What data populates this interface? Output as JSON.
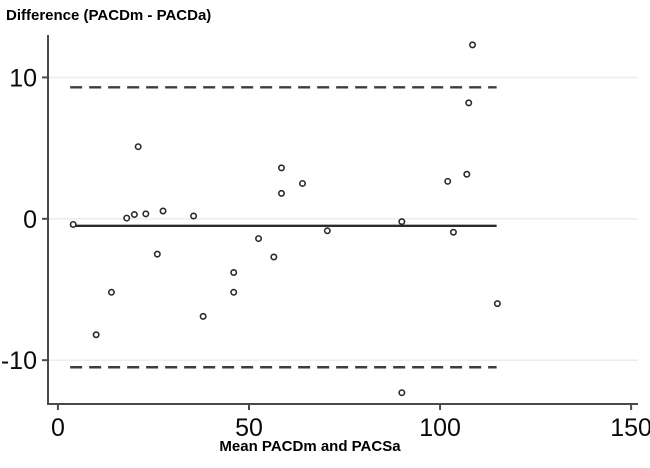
{
  "chart": {
    "title": "Difference (PACDm - PACDa)",
    "xlabel": "Mean PACDm and PACSa"
  },
  "chart_data": {
    "type": "scatter",
    "title": "Difference (PACDm - PACDa)",
    "xlabel": "Mean PACDm and PACSa",
    "ylabel": "Difference (PACDm - PACDa)",
    "x_ticks": [
      0,
      50,
      100,
      150
    ],
    "y_ticks": [
      10,
      0,
      -10
    ],
    "xlim": [
      -2.6,
      151.8
    ],
    "ylim": [
      -13.1,
      13.0
    ],
    "grid": "horizontal-light",
    "legend": "none",
    "mean_line": -0.5,
    "upper_limit": 9.3,
    "lower_limit": -10.5,
    "line_x_range": [
      3.2,
      114.8
    ],
    "points": [
      [
        4,
        -0.4
      ],
      [
        10,
        -8.2
      ],
      [
        14,
        -5.2
      ],
      [
        18,
        0.05
      ],
      [
        20,
        0.3
      ],
      [
        21,
        5.1
      ],
      [
        23,
        0.35
      ],
      [
        26,
        -2.5
      ],
      [
        27.5,
        0.55
      ],
      [
        35.5,
        0.2
      ],
      [
        38,
        -6.9
      ],
      [
        46,
        -3.8
      ],
      [
        46,
        -5.2
      ],
      [
        52.5,
        -1.4
      ],
      [
        56.5,
        -2.7
      ],
      [
        58.5,
        1.8
      ],
      [
        58.5,
        3.6
      ],
      [
        64,
        2.5
      ],
      [
        70.5,
        -0.85
      ],
      [
        90,
        -0.2
      ],
      [
        90,
        -12.3
      ],
      [
        102,
        2.65
      ],
      [
        103.5,
        -0.95
      ],
      [
        107,
        3.15
      ],
      [
        107.5,
        8.2
      ],
      [
        108.5,
        12.3
      ],
      [
        115,
        -6
      ]
    ],
    "colors": {
      "marker": "#2b2b2b",
      "marker_fill": "#ffffff",
      "mean_line": "#2b2b2b",
      "limit_lines": "#3d3d3d",
      "grid": "#e9eef1",
      "axis": "#4a4a4a",
      "text": "#0a0a0a"
    }
  }
}
